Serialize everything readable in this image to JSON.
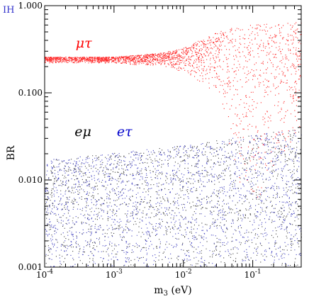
{
  "chart_data": {
    "type": "scatter",
    "corner_label": "IH",
    "xlabel_main": "m",
    "xlabel_sub": "3",
    "xlabel_unit": " (eV)",
    "ylabel": "BR",
    "x_scale": "log",
    "y_scale": "log",
    "xlim": [
      0.0001,
      0.5
    ],
    "ylim": [
      0.001,
      1.0
    ],
    "grid": false,
    "x_ticks": [
      {
        "value": 0.0001,
        "base": "10",
        "exp": "-4"
      },
      {
        "value": 0.001,
        "base": "10",
        "exp": "-3"
      },
      {
        "value": 0.01,
        "base": "10",
        "exp": "-2"
      },
      {
        "value": 0.1,
        "base": "10",
        "exp": "-1"
      }
    ],
    "y_ticks": [
      {
        "value": 0.001,
        "label": "0.001"
      },
      {
        "value": 0.01,
        "label": "0.010"
      },
      {
        "value": 0.1,
        "label": "0.100"
      },
      {
        "value": 1.0,
        "label": "1.000"
      }
    ],
    "series": [
      {
        "name": "μτ",
        "color": "#ff0000",
        "description_points": [
          {
            "m3": 0.0001,
            "br_low": 0.22,
            "br_high": 0.26
          },
          {
            "m3": 0.001,
            "br_low": 0.22,
            "br_high": 0.26
          },
          {
            "m3": 0.005,
            "br_low": 0.2,
            "br_high": 0.29
          },
          {
            "m3": 0.01,
            "br_low": 0.17,
            "br_high": 0.33
          },
          {
            "m3": 0.03,
            "br_low": 0.1,
            "br_high": 0.5
          },
          {
            "m3": 0.06,
            "br_low": 0.01,
            "br_high": 0.6
          },
          {
            "m3": 0.1,
            "br_low": 0.005,
            "br_high": 0.62
          },
          {
            "m3": 0.5,
            "br_low": 0.04,
            "br_high": 0.65
          }
        ]
      },
      {
        "name": "eμ",
        "color": "#000000",
        "description_points": [
          {
            "m3": 0.0001,
            "br_low": 0.001,
            "br_high": 0.017
          },
          {
            "m3": 0.01,
            "br_low": 0.001,
            "br_high": 0.025
          },
          {
            "m3": 0.5,
            "br_low": 0.001,
            "br_high": 0.04
          }
        ]
      },
      {
        "name": "eτ",
        "color": "#0000aa",
        "description_points": [
          {
            "m3": 0.0001,
            "br_low": 0.001,
            "br_high": 0.017
          },
          {
            "m3": 0.01,
            "br_low": 0.001,
            "br_high": 0.025
          },
          {
            "m3": 0.5,
            "br_low": 0.001,
            "br_high": 0.04
          }
        ]
      }
    ],
    "annotations": [
      {
        "text": "μτ",
        "color": "#ff0000",
        "m3": 0.00028,
        "br": 0.33
      },
      {
        "text": "eμ",
        "color": "#000000",
        "m3": 0.00027,
        "br": 0.032
      },
      {
        "text": "eτ",
        "color": "#0000cc",
        "m3": 0.0011,
        "br": 0.032
      }
    ],
    "colors": {
      "corner_label": "#3333cc",
      "axis": "#000000"
    }
  }
}
